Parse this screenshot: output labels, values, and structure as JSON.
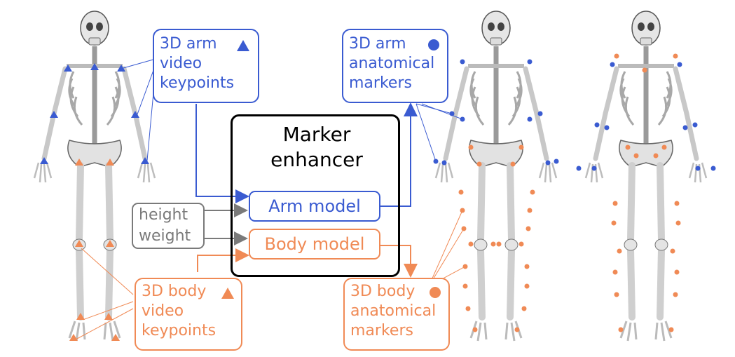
{
  "colors": {
    "arm": "#3a5bd1",
    "body": "#f08a55",
    "input": "#7a7a7a",
    "core": "#000000"
  },
  "arm_video": {
    "line1": "3D arm",
    "line2": "video",
    "line3": "keypoints",
    "marker_icon": "triangle-icon"
  },
  "arm_anatomical": {
    "line1": "3D arm",
    "line2": "anatomical",
    "line3": "markers",
    "marker_icon": "circle-icon"
  },
  "body_video": {
    "line1": "3D body",
    "line2": "video",
    "line3": "keypoints",
    "marker_icon": "triangle-icon"
  },
  "body_anatomical": {
    "line1": "3D body",
    "line2": "anatomical",
    "line3": "markers",
    "marker_icon": "circle-icon"
  },
  "enhancer": {
    "title1": "Marker",
    "title2": "enhancer",
    "arm_model": "Arm model",
    "body_model": "Body model"
  },
  "inputs": {
    "line1": "height",
    "line2": "weight"
  }
}
